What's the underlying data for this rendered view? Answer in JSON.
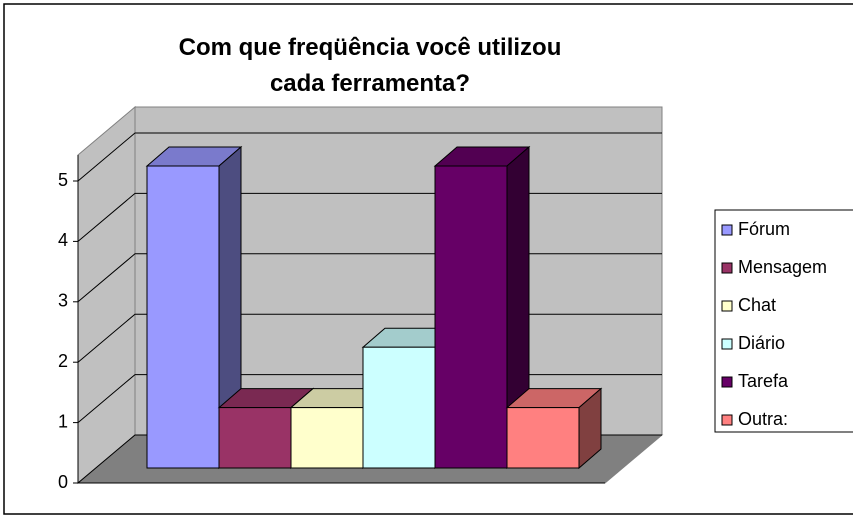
{
  "chart_data": {
    "type": "bar",
    "title": "Com que freqüência você utilizou cada ferramenta?",
    "categories": [
      null
    ],
    "series": [
      {
        "name": "Fórum",
        "color": "#9999ff",
        "values": [
          5
        ]
      },
      {
        "name": "Mensagem",
        "color": "#993366",
        "values": [
          1
        ]
      },
      {
        "name": "Chat",
        "color": "#ffffcc",
        "values": [
          1
        ]
      },
      {
        "name": "Diário",
        "color": "#ccffff",
        "values": [
          2
        ]
      },
      {
        "name": "Tarefa",
        "color": "#660066",
        "values": [
          5
        ]
      },
      {
        "name": "Outra:",
        "color": "#ff8080",
        "values": [
          1
        ]
      }
    ],
    "ylim": [
      0,
      5
    ],
    "yticks": [
      0,
      1,
      2,
      3,
      4,
      5
    ],
    "grid": true,
    "legend": "right"
  }
}
